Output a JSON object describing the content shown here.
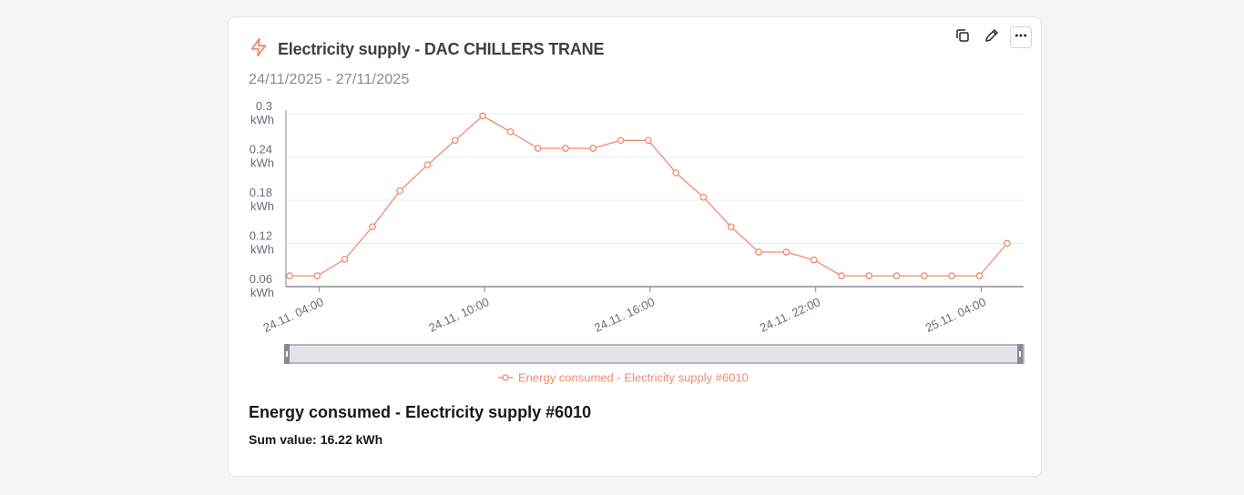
{
  "widget": {
    "title": "Electricity supply - DAC CHILLERS TRANE",
    "date_range": "24/11/2025 - 27/11/2025",
    "icon": "lightning-icon",
    "accent_color": "#f28b6b",
    "toolbar": {
      "copy_icon": "copy-icon",
      "edit_icon": "pencil-icon",
      "more_icon": "more-horizontal-icon"
    }
  },
  "chart_data": {
    "type": "line",
    "x": [
      "24.11. 03:00",
      "24.11. 04:00",
      "24.11. 05:00",
      "24.11. 06:00",
      "24.11. 07:00",
      "24.11. 08:00",
      "24.11. 09:00",
      "24.11. 10:00",
      "24.11. 11:00",
      "24.11. 12:00",
      "24.11. 13:00",
      "24.11. 14:00",
      "24.11. 15:00",
      "24.11. 16:00",
      "24.11. 17:00",
      "24.11. 18:00",
      "24.11. 19:00",
      "24.11. 20:00",
      "24.11. 21:00",
      "24.11. 22:00",
      "24.11. 23:00",
      "25.11. 00:00",
      "25.11. 01:00",
      "25.11. 02:00",
      "25.11. 03:00",
      "25.11. 04:00",
      "25.11. 05:00"
    ],
    "series": [
      {
        "name": "Energy consumed - Electricity supply #6010",
        "values": [
          0.075,
          0.075,
          0.098,
          0.143,
          0.193,
          0.229,
          0.263,
          0.297,
          0.275,
          0.252,
          0.252,
          0.252,
          0.263,
          0.263,
          0.218,
          0.184,
          0.143,
          0.108,
          0.108,
          0.097,
          0.075,
          0.075,
          0.075,
          0.075,
          0.075,
          0.075,
          0.12
        ]
      }
    ],
    "ylim": [
      0.06,
      0.3
    ],
    "y_ticks": [
      {
        "value": 0.3,
        "label": "0.3",
        "unit": "kWh"
      },
      {
        "value": 0.24,
        "label": "0.24",
        "unit": "kWh"
      },
      {
        "value": 0.18,
        "label": "0.18",
        "unit": "kWh"
      },
      {
        "value": 0.12,
        "label": "0.12",
        "unit": "kWh"
      },
      {
        "value": 0.06,
        "label": "0.06",
        "unit": "kWh"
      }
    ],
    "x_ticks": [
      {
        "index": 1,
        "label": "24.11. 04:00"
      },
      {
        "index": 7,
        "label": "24.11. 10:00"
      },
      {
        "index": 13,
        "label": "24.11. 16:00"
      },
      {
        "index": 19,
        "label": "24.11. 22:00"
      },
      {
        "index": 25,
        "label": "25.11. 04:00"
      }
    ],
    "grid": true,
    "legend": "bottom",
    "line_color": "#f28b6b"
  },
  "summary": {
    "series_title": "Energy consumed - Electricity supply #6010",
    "sum_label": "Sum value:",
    "sum_value": "16.22 kWh"
  }
}
